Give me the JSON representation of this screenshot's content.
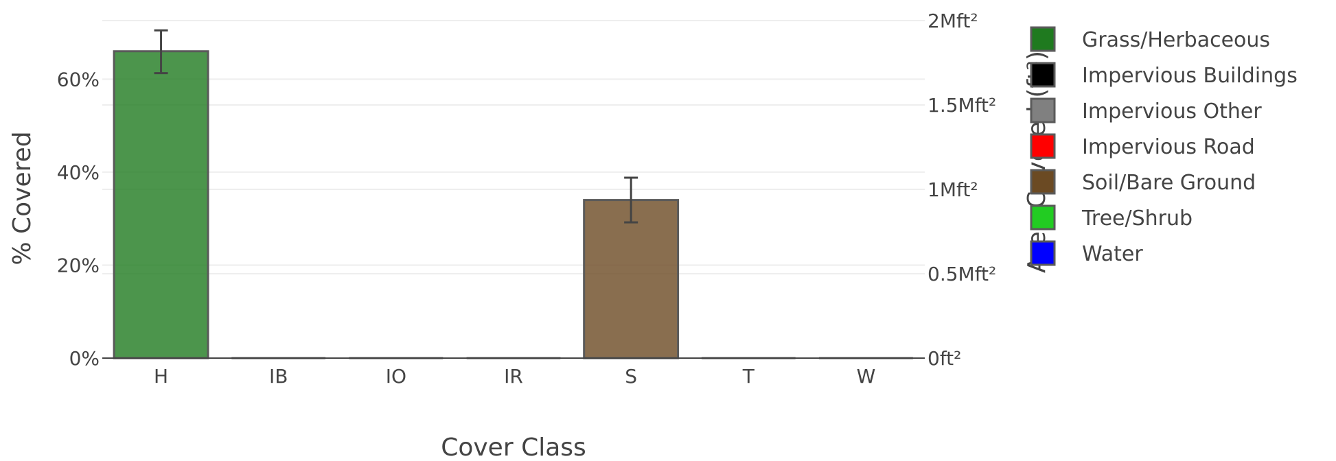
{
  "chart_data": {
    "type": "bar",
    "categories": [
      "H",
      "IB",
      "IO",
      "IR",
      "S",
      "T",
      "W"
    ],
    "series": [
      {
        "values": [
          66.0,
          0,
          0,
          0,
          34.0,
          0,
          0
        ],
        "error_low": [
          61.3,
          0,
          0,
          0,
          29.2,
          0,
          0
        ],
        "error_high": [
          70.5,
          0,
          0,
          0,
          38.8,
          0,
          0
        ]
      }
    ],
    "bar_colors": [
      "#1f7a1f",
      "#000000",
      "#808080",
      "#ff0000",
      "#6b4a23",
      "#22cc22",
      "#0000ff"
    ],
    "xlabel": "Cover Class",
    "ylabel": "% Covered",
    "ylim": [
      0,
      72.6
    ],
    "yticks": [
      0,
      20,
      40,
      60
    ],
    "ytick_labels": [
      "0%",
      "20%",
      "40%",
      "60%"
    ],
    "y2label": "Area Covered (ft²)",
    "y2lim": [
      0,
      2
    ],
    "y2ticks": [
      0,
      0.5,
      1,
      1.5,
      2
    ],
    "y2tick_labels": [
      "0ft²",
      "0.5Mft²",
      "1Mft²",
      "1.5Mft²",
      "2Mft²"
    ],
    "grid": true,
    "legend": {
      "position": "right",
      "entries": [
        {
          "label": "Grass/Herbaceous",
          "color": "#1f7a1f"
        },
        {
          "label": "Impervious Buildings",
          "color": "#000000"
        },
        {
          "label": "Impervious Other",
          "color": "#808080"
        },
        {
          "label": "Impervious Road",
          "color": "#ff0000"
        },
        {
          "label": "Soil/Bare Ground",
          "color": "#6b4a23"
        },
        {
          "label": "Tree/Shrub",
          "color": "#22cc22"
        },
        {
          "label": "Water",
          "color": "#0000ff"
        }
      ]
    }
  }
}
